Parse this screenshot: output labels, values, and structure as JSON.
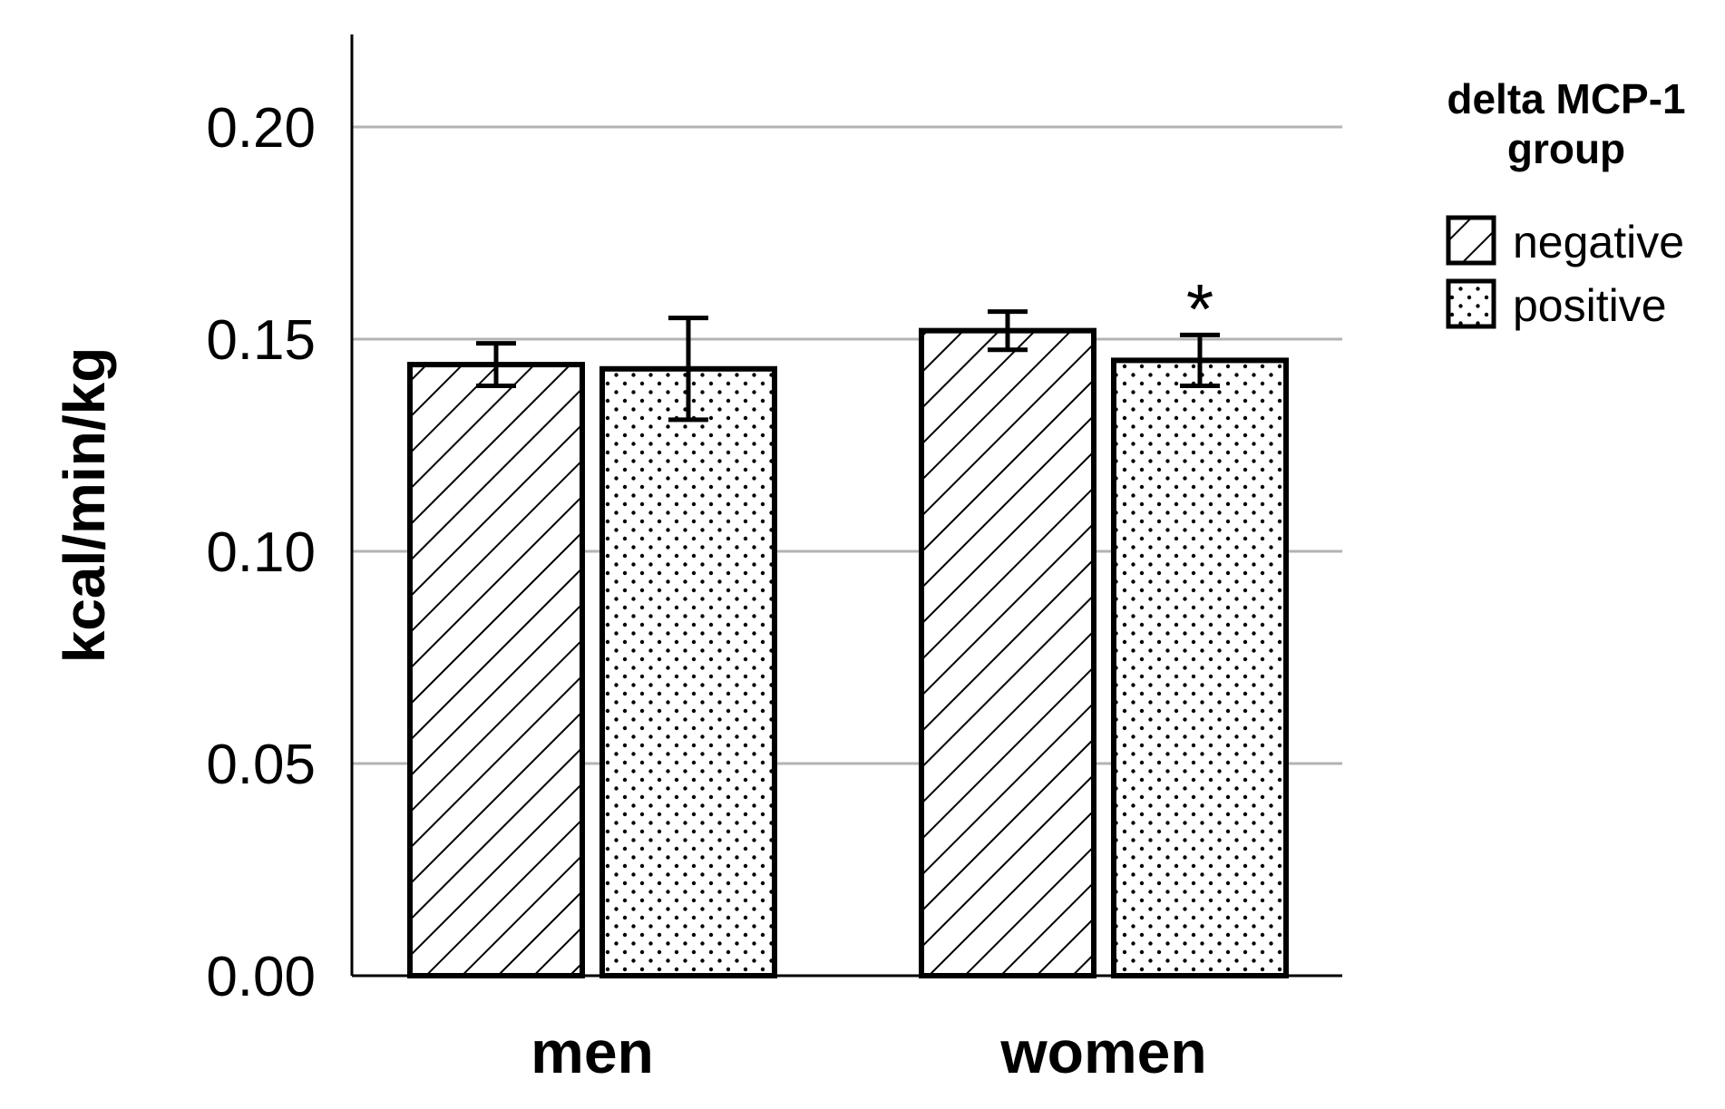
{
  "chart_data": {
    "type": "bar",
    "title": "",
    "xlabel": "",
    "ylabel": "kcal/min/kg",
    "ylim": [
      0,
      0.22
    ],
    "yticks": [
      "0.00",
      "0.05",
      "0.10",
      "0.15",
      "0.20"
    ],
    "grid": true,
    "categories": [
      "men",
      "women"
    ],
    "legend": {
      "title_lines": [
        "delta MCP-1",
        "group"
      ],
      "placement": "top-right"
    },
    "series": [
      {
        "name": "negative",
        "pattern": "diagonal-hatch",
        "values": [
          0.144,
          0.152
        ],
        "error": [
          0.005,
          0.0045
        ]
      },
      {
        "name": "positive",
        "pattern": "dots",
        "values": [
          0.143,
          0.145
        ],
        "error": [
          0.012,
          0.006
        ]
      }
    ],
    "annotations": [
      {
        "text": "*",
        "category": "women",
        "series": "positive"
      }
    ]
  }
}
